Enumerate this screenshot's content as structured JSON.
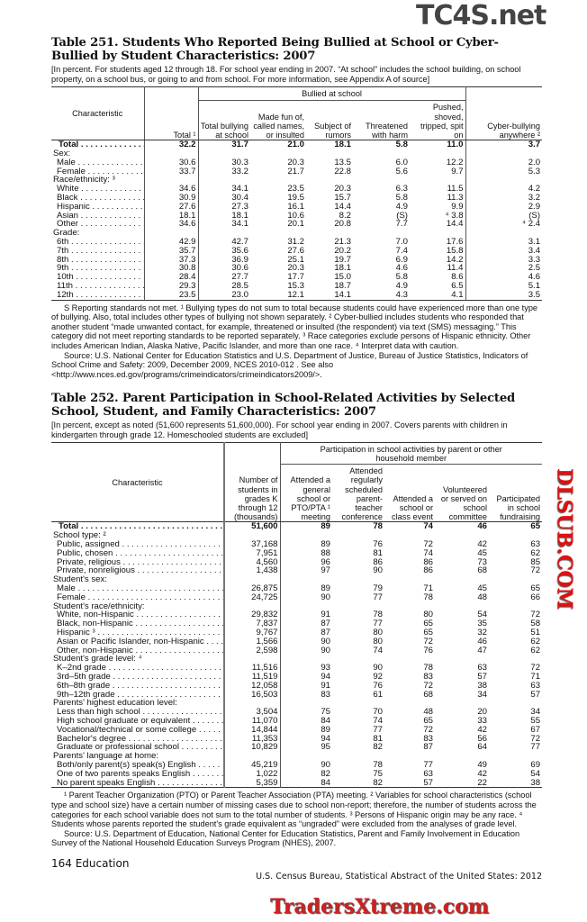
{
  "watermarks": {
    "top": "TC4S.net",
    "middle": "DLSUB.COM",
    "bottom": "TradersXtreme.com"
  },
  "t251": {
    "title": "Table 251. Students Who Reported Being Bullied at School or Cyber-Bullied by Student Characteristics: 2007",
    "headnote": "[In percent. For students aged 12 through 18. For school year ending in 2007. “At school” includes the school building, on school property, on a school bus, or going to and from school. For more information, see Appendix A of source]",
    "spanner": "Bullied at school",
    "headers": [
      "Characteristic",
      "Total ¹",
      "Total bullying at school",
      "Made fun of, called names, or insulted",
      "Subject of rumors",
      "Threatened with harm",
      "Pushed, shoved, tripped, spit on",
      "Cyber-bullying anywhere ²"
    ],
    "rows": [
      {
        "label": "Total",
        "total": true,
        "v": [
          "32.2",
          "31.7",
          "21.0",
          "18.1",
          "5.8",
          "11.0",
          "3.7"
        ]
      },
      {
        "label": "Sex:",
        "section": true
      },
      {
        "label": "Male",
        "v": [
          "30.6",
          "30.3",
          "20.3",
          "13.5",
          "6.0",
          "12.2",
          "2.0"
        ]
      },
      {
        "label": "Female",
        "v": [
          "33.7",
          "33.2",
          "21.7",
          "22.8",
          "5.6",
          "9.7",
          "5.3"
        ]
      },
      {
        "label": "Race/ethnicity: ³",
        "section": true
      },
      {
        "label": "White",
        "v": [
          "34.6",
          "34.1",
          "23.5",
          "20.3",
          "6.3",
          "11.5",
          "4.2"
        ]
      },
      {
        "label": "Black",
        "v": [
          "30.9",
          "30.4",
          "19.5",
          "15.7",
          "5.8",
          "11.3",
          "3.2"
        ]
      },
      {
        "label": "Hispanic",
        "v": [
          "27.6",
          "27.3",
          "16.1",
          "14.4",
          "4.9",
          "9.9",
          "2.9"
        ]
      },
      {
        "label": "Asian",
        "v": [
          "18.1",
          "18.1",
          "10.6",
          "8.2",
          "(S)",
          "⁴ 3.8",
          "(S)"
        ]
      },
      {
        "label": "Other",
        "v": [
          "34.6",
          "34.1",
          "20.1",
          "20.8",
          "7.7",
          "14.4",
          "⁴ 2.4"
        ]
      },
      {
        "label": "Grade:",
        "section": true
      },
      {
        "label": "6th",
        "v": [
          "42.9",
          "42.7",
          "31.2",
          "21.3",
          "7.0",
          "17.6",
          "3.1"
        ]
      },
      {
        "label": "7th",
        "v": [
          "35.7",
          "35.6",
          "27.6",
          "20.2",
          "7.4",
          "15.8",
          "3.4"
        ]
      },
      {
        "label": "8th",
        "v": [
          "37.3",
          "36.9",
          "25.1",
          "19.7",
          "6.9",
          "14.2",
          "3.3"
        ]
      },
      {
        "label": "9th",
        "v": [
          "30.8",
          "30.6",
          "20.3",
          "18.1",
          "4.6",
          "11.4",
          "2.5"
        ]
      },
      {
        "label": "10th",
        "v": [
          "28.4",
          "27.7",
          "17.7",
          "15.0",
          "5.8",
          "8.6",
          "4.6"
        ]
      },
      {
        "label": "11th",
        "v": [
          "29.3",
          "28.5",
          "15.3",
          "18.7",
          "4.9",
          "6.5",
          "5.1"
        ]
      },
      {
        "label": "12th",
        "v": [
          "23.5",
          "23.0",
          "12.1",
          "14.1",
          "4.3",
          "4.1",
          "3.5"
        ]
      }
    ],
    "footnotes": "S Reporting standards not met. ¹ Bullying types do not sum to total because students could have experienced more than one type of bullying. Also, total includes other types of bullying not shown separately. ² Cyber-bullied includes students who responded that another student “made unwanted contact, for example, threatened or insulted (the respondent) via text (SMS) messaging.” This category did not meet reporting standards to be reported separately. ³ Race categories exclude persons of Hispanic ethnicity. Other includes American Indian, Alaska Native, Pacific Islander, and more than one race. ⁴ Interpret data with caution.",
    "source": "Source: U.S. National Center for Education Statistics and U.S. Department of Justice, Bureau of Justice Statistics, Indicators of School Crime and Safety: 2009, December 2009, NCES 2010-012 . See also <http://www.nces.ed.gov/programs/crimeindicators/crimeindicators2009/>."
  },
  "t252": {
    "title": "Table 252. Parent Participation in School-Related Activities by Selected School, Student, and Family Characteristics: 2007",
    "headnote": "[In percent, except as noted (51,600 represents 51,600,000). For school year ending in 2007. Covers parents with children in kindergarten through grade 12. Homeschooled students are excluded]",
    "spanner": "Participation in school activities by parent or other household member",
    "headers": [
      "Characteristic",
      "Number of students in grades K through 12 (thousands)",
      "Attended a general school or PTO/PTA ¹ meeting",
      "Attended regularly scheduled parent-teacher conference",
      "Attended a school or class event",
      "Volunteered or served on school committee",
      "Participated in school fundraising"
    ],
    "rows": [
      {
        "label": "Total",
        "total": true,
        "v": [
          "51,600",
          "89",
          "78",
          "74",
          "46",
          "65"
        ]
      },
      {
        "label": "School type: ²",
        "section": true
      },
      {
        "label": "Public, assigned",
        "v": [
          "37,168",
          "89",
          "76",
          "72",
          "42",
          "63"
        ]
      },
      {
        "label": "Public, chosen",
        "v": [
          "7,951",
          "88",
          "81",
          "74",
          "45",
          "62"
        ]
      },
      {
        "label": "Private, religious",
        "v": [
          "4,560",
          "96",
          "86",
          "86",
          "73",
          "85"
        ]
      },
      {
        "label": "Private, nonreligious",
        "v": [
          "1,438",
          "97",
          "90",
          "86",
          "68",
          "72"
        ]
      },
      {
        "label": "Student's sex:",
        "section": true
      },
      {
        "label": "Male",
        "v": [
          "26,875",
          "89",
          "79",
          "71",
          "45",
          "65"
        ]
      },
      {
        "label": "Female",
        "v": [
          "24,725",
          "90",
          "77",
          "78",
          "48",
          "66"
        ]
      },
      {
        "label": "Student's race/ethnicity:",
        "section": true
      },
      {
        "label": "White, non-Hispanic",
        "v": [
          "29,832",
          "91",
          "78",
          "80",
          "54",
          "72"
        ]
      },
      {
        "label": "Black, non-Hispanic",
        "v": [
          "7,837",
          "87",
          "77",
          "65",
          "35",
          "58"
        ]
      },
      {
        "label": "Hispanic ³",
        "v": [
          "9,767",
          "87",
          "80",
          "65",
          "32",
          "51"
        ]
      },
      {
        "label": "Asian or Pacific Islander, non-Hispanic",
        "v": [
          "1,566",
          "90",
          "80",
          "72",
          "46",
          "62"
        ]
      },
      {
        "label": "Other, non-Hispanic",
        "v": [
          "2,598",
          "90",
          "74",
          "76",
          "47",
          "62"
        ]
      },
      {
        "label": "Student's grade level: ⁴",
        "section": true
      },
      {
        "label": "K–2nd grade",
        "v": [
          "11,516",
          "93",
          "90",
          "78",
          "63",
          "72"
        ]
      },
      {
        "label": "3rd–5th grade",
        "v": [
          "11,519",
          "94",
          "92",
          "83",
          "57",
          "71"
        ]
      },
      {
        "label": "6th–8th grade",
        "v": [
          "12,058",
          "91",
          "76",
          "72",
          "38",
          "63"
        ]
      },
      {
        "label": "9th–12th grade",
        "v": [
          "16,503",
          "83",
          "61",
          "68",
          "34",
          "57"
        ]
      },
      {
        "label": "Parents' highest education level:",
        "section": true
      },
      {
        "label": "Less than high school",
        "v": [
          "3,504",
          "75",
          "70",
          "48",
          "20",
          "34"
        ]
      },
      {
        "label": "High school graduate or equivalent",
        "v": [
          "11,070",
          "84",
          "74",
          "65",
          "33",
          "55"
        ]
      },
      {
        "label": "Vocational/technical or some college",
        "v": [
          "14,844",
          "89",
          "77",
          "72",
          "42",
          "67"
        ]
      },
      {
        "label": "Bachelor's degree",
        "v": [
          "11,353",
          "94",
          "81",
          "83",
          "56",
          "72"
        ]
      },
      {
        "label": "Graduate or professional school",
        "v": [
          "10,829",
          "95",
          "82",
          "87",
          "64",
          "77"
        ]
      },
      {
        "label": "Parents' language at home:",
        "section": true
      },
      {
        "label": "Both/only parent(s) speak(s) English",
        "v": [
          "45,219",
          "90",
          "78",
          "77",
          "49",
          "69"
        ]
      },
      {
        "label": "One of two parents speaks English",
        "v": [
          "1,022",
          "82",
          "75",
          "63",
          "42",
          "54"
        ]
      },
      {
        "label": "No parent speaks English",
        "v": [
          "5,359",
          "84",
          "82",
          "57",
          "22",
          "38"
        ]
      }
    ],
    "footnotes": "¹ Parent Teacher Organization (PTO) or Parent Teacher Association (PTA) meeting. ² Variables for school characteristics (school type and school size) have a certain number of missing cases due to school non-report; therefore, the number of students across the categories for each school variable does not sum to the total number of students. ³ Persons of Hispanic origin may be any race. ⁴ Students whose parents reported the student's grade equivalent as “ungraded” were excluded from the analyses of grade level.",
    "source": "Source: U.S. Department of Education, National Center for Education Statistics, Parent and Family Involvement in Education Survey of the National Household Education Surveys Program (NHES), 2007."
  },
  "footer": {
    "page": "164  Education",
    "publication": "U.S. Census Bureau, Statistical Abstract of the United States: 2012"
  }
}
